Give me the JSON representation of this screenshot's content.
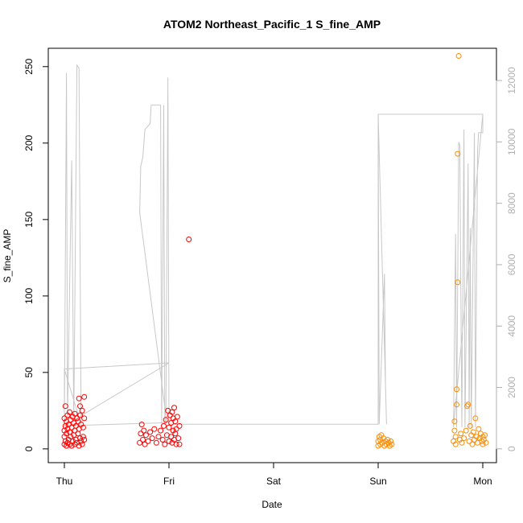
{
  "chart_data": {
    "type": "scatter",
    "title": "ATOM2 Northeast_Pacific_1 S_fine_AMP",
    "xlabel": "Date",
    "ylabel": "S_fine_AMP",
    "x_ticks": [
      "Thu",
      "Fri",
      "Sat",
      "Sun",
      "Mon"
    ],
    "x_range": [
      0,
      4.1
    ],
    "ylim": [
      -9,
      262
    ],
    "y_ticks": [
      0,
      50,
      100,
      150,
      200,
      250
    ],
    "y2lim": [
      -450,
      13050
    ],
    "y2_ticks": [
      0,
      2000,
      4000,
      6000,
      8000,
      10000,
      12000
    ],
    "grid": false,
    "colors": {
      "segment1": "#ff0000",
      "segment2": "#ff8c00",
      "secondary_line": "#c8c8c8",
      "secondary_axis": "#b0b0b0"
    },
    "series": [
      {
        "color": "#ff0000",
        "points": [
          [
            0.0,
            3
          ],
          [
            0.0,
            8
          ],
          [
            0.0,
            12
          ],
          [
            0.0,
            20
          ],
          [
            0.01,
            5
          ],
          [
            0.01,
            15
          ],
          [
            0.01,
            28
          ],
          [
            0.02,
            2
          ],
          [
            0.02,
            10
          ],
          [
            0.02,
            18
          ],
          [
            0.03,
            4
          ],
          [
            0.03,
            13
          ],
          [
            0.03,
            22
          ],
          [
            0.04,
            6
          ],
          [
            0.04,
            16
          ],
          [
            0.05,
            3
          ],
          [
            0.05,
            11
          ],
          [
            0.05,
            24
          ],
          [
            0.06,
            8
          ],
          [
            0.06,
            19
          ],
          [
            0.07,
            2
          ],
          [
            0.07,
            14
          ],
          [
            0.08,
            5
          ],
          [
            0.08,
            21
          ],
          [
            0.09,
            9
          ],
          [
            0.09,
            17
          ],
          [
            0.1,
            3
          ],
          [
            0.1,
            12
          ],
          [
            0.1,
            23
          ],
          [
            0.11,
            6
          ],
          [
            0.11,
            15
          ],
          [
            0.12,
            4
          ],
          [
            0.12,
            20
          ],
          [
            0.13,
            10
          ],
          [
            0.13,
            18
          ],
          [
            0.14,
            2
          ],
          [
            0.14,
            13
          ],
          [
            0.15,
            7
          ],
          [
            0.15,
            22
          ],
          [
            0.16,
            5
          ],
          [
            0.16,
            16
          ],
          [
            0.17,
            3
          ],
          [
            0.17,
            25
          ],
          [
            0.18,
            8
          ],
          [
            0.18,
            14
          ],
          [
            0.19,
            6
          ],
          [
            0.19,
            34
          ],
          [
            0.19,
            20
          ],
          [
            0.14,
            33
          ],
          [
            0.15,
            28
          ],
          [
            0.72,
            4
          ],
          [
            0.73,
            10
          ],
          [
            0.74,
            16
          ],
          [
            0.75,
            6
          ],
          [
            0.76,
            12
          ],
          [
            0.77,
            3
          ],
          [
            0.78,
            9
          ],
          [
            0.8,
            5
          ],
          [
            0.82,
            11
          ],
          [
            0.84,
            7
          ],
          [
            0.86,
            13
          ],
          [
            0.88,
            4
          ],
          [
            0.9,
            8
          ],
          [
            0.92,
            12
          ],
          [
            0.94,
            6
          ],
          [
            0.95,
            15
          ],
          [
            0.96,
            3
          ],
          [
            0.97,
            19
          ],
          [
            0.98,
            9
          ],
          [
            0.99,
            25
          ],
          [
            1.0,
            5
          ],
          [
            1.0,
            14
          ],
          [
            1.01,
            22
          ],
          [
            1.02,
            8
          ],
          [
            1.02,
            17
          ],
          [
            1.03,
            24
          ],
          [
            1.03,
            4
          ],
          [
            1.04,
            12
          ],
          [
            1.04,
            20
          ],
          [
            1.05,
            6
          ],
          [
            1.05,
            27
          ],
          [
            1.06,
            10
          ],
          [
            1.06,
            18
          ],
          [
            1.07,
            3
          ],
          [
            1.07,
            13
          ],
          [
            1.08,
            21
          ],
          [
            1.09,
            7
          ],
          [
            1.1,
            15
          ],
          [
            1.1,
            3
          ],
          [
            1.19,
            137
          ]
        ]
      },
      {
        "color": "#ff8c00",
        "points": [
          [
            3.0,
            2
          ],
          [
            3.0,
            5
          ],
          [
            3.01,
            8
          ],
          [
            3.02,
            3
          ],
          [
            3.02,
            6
          ],
          [
            3.03,
            9
          ],
          [
            3.04,
            4
          ],
          [
            3.05,
            7
          ],
          [
            3.06,
            2
          ],
          [
            3.07,
            5
          ],
          [
            3.08,
            3
          ],
          [
            3.09,
            6
          ],
          [
            3.1,
            4
          ],
          [
            3.11,
            2
          ],
          [
            3.12,
            5
          ],
          [
            3.13,
            3
          ],
          [
            3.72,
            5
          ],
          [
            3.73,
            12
          ],
          [
            3.73,
            18
          ],
          [
            3.74,
            3
          ],
          [
            3.74,
            8
          ],
          [
            3.75,
            29
          ],
          [
            3.75,
            39
          ],
          [
            3.76,
            109
          ],
          [
            3.76,
            193
          ],
          [
            3.77,
            257
          ],
          [
            3.78,
            6
          ],
          [
            3.79,
            10
          ],
          [
            3.8,
            4
          ],
          [
            3.82,
            7
          ],
          [
            3.84,
            12
          ],
          [
            3.85,
            28
          ],
          [
            3.86,
            29
          ],
          [
            3.87,
            5
          ],
          [
            3.88,
            15
          ],
          [
            3.89,
            9
          ],
          [
            3.9,
            3
          ],
          [
            3.91,
            11
          ],
          [
            3.92,
            6
          ],
          [
            3.93,
            20
          ],
          [
            3.94,
            8
          ],
          [
            3.95,
            4
          ],
          [
            3.96,
            13
          ],
          [
            3.97,
            7
          ],
          [
            3.98,
            10
          ],
          [
            3.99,
            5
          ],
          [
            4.0,
            8
          ],
          [
            4.0,
            3
          ],
          [
            4.01,
            6
          ],
          [
            4.02,
            9
          ],
          [
            4.03,
            4
          ]
        ]
      }
    ],
    "secondary_line": {
      "axis": "right",
      "color": "#c8c8c8",
      "points": [
        [
          0.0,
          2600
        ],
        [
          0.0,
          750
        ],
        [
          0.02,
          12250
        ],
        [
          0.03,
          1000
        ],
        [
          0.07,
          9400
        ],
        [
          0.09,
          850
        ],
        [
          0.12,
          12500
        ],
        [
          0.14,
          12400
        ],
        [
          0.16,
          800
        ],
        [
          0.0,
          2600
        ],
        [
          1.0,
          2800
        ],
        [
          0.0,
          750
        ],
        [
          0.98,
          850
        ],
        [
          0.72,
          7700
        ],
        [
          0.73,
          9200
        ],
        [
          0.75,
          9500
        ],
        [
          0.77,
          10400
        ],
        [
          0.82,
          10600
        ],
        [
          0.83,
          11200
        ],
        [
          0.92,
          11200
        ],
        [
          0.93,
          700
        ],
        [
          0.95,
          11200
        ],
        [
          0.96,
          800
        ],
        [
          0.97,
          800
        ],
        [
          0.99,
          12100
        ],
        [
          1.0,
          850
        ],
        [
          1.0,
          800
        ],
        [
          3.0,
          800
        ],
        [
          3.0,
          10900
        ],
        [
          3.01,
          800
        ],
        [
          3.06,
          5700
        ],
        [
          3.07,
          2100
        ],
        [
          3.08,
          800
        ],
        [
          3.0,
          10900
        ],
        [
          4.0,
          10900
        ],
        [
          3.72,
          700
        ],
        [
          3.74,
          7000
        ],
        [
          3.75,
          700
        ],
        [
          3.77,
          10000
        ],
        [
          3.78,
          9900
        ],
        [
          3.8,
          700
        ],
        [
          3.82,
          10400
        ],
        [
          3.83,
          700
        ],
        [
          3.86,
          9300
        ],
        [
          3.87,
          700
        ],
        [
          3.88,
          7200
        ],
        [
          3.89,
          700
        ],
        [
          3.92,
          10300
        ],
        [
          3.93,
          700
        ],
        [
          3.95,
          9700
        ],
        [
          3.96,
          10300
        ],
        [
          4.0,
          10300
        ],
        [
          4.0,
          10900
        ]
      ]
    }
  }
}
